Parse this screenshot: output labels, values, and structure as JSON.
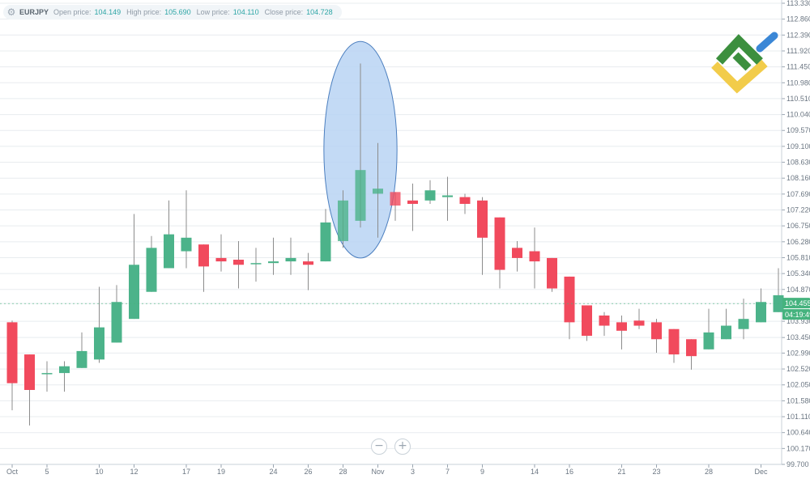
{
  "header": {
    "symbol": "EURJPY",
    "open_label": "Open price:",
    "open_value": "104.149",
    "high_label": "High price:",
    "high_value": "105.690",
    "low_label": "Low price:",
    "low_value": "104.110",
    "close_label": "Close price:",
    "close_value": "104.728"
  },
  "zoom": {
    "out": "−",
    "in": "+"
  },
  "price_badge": "104.455",
  "time_badge": "04:19:49",
  "colors": {
    "up": "#4cb38a",
    "down": "#f14a5d",
    "wick": "#8c8c8c",
    "grid": "#e8ecef",
    "axis_text": "#6b7682",
    "highlight_fill": "#b8d4f3",
    "highlight_stroke": "#4c7fbf",
    "badge": "#45b37e"
  },
  "chart_data": {
    "type": "candlestick",
    "ylim": [
      99.7,
      113.33
    ],
    "y_ticks": [
      "113.330",
      "112.860",
      "112.390",
      "111.920",
      "111.450",
      "110.980",
      "110.510",
      "110.040",
      "109.570",
      "109.100",
      "108.630",
      "108.160",
      "107.690",
      "107.220",
      "106.750",
      "106.280",
      "105.810",
      "105.340",
      "104.870",
      "104.455",
      "103.930",
      "103.450",
      "102.990",
      "102.520",
      "102.050",
      "101.580",
      "101.110",
      "100.640",
      "100.170",
      "99.700"
    ],
    "x_ticks": [
      "Oct",
      "5",
      "10",
      "12",
      "17",
      "19",
      "24",
      "26",
      "28",
      "Nov",
      "3",
      "7",
      "9",
      "14",
      "16",
      "21",
      "23",
      "28",
      "Dec"
    ],
    "candles": [
      {
        "o": 103.9,
        "h": 103.95,
        "l": 101.3,
        "c": 102.1
      },
      {
        "o": 102.95,
        "h": 102.95,
        "l": 100.85,
        "c": 101.9
      },
      {
        "o": 102.4,
        "h": 102.75,
        "l": 101.85,
        "c": 102.4
      },
      {
        "o": 102.4,
        "h": 102.75,
        "l": 101.85,
        "c": 102.6
      },
      {
        "o": 102.55,
        "h": 103.6,
        "l": 102.55,
        "c": 103.05
      },
      {
        "o": 102.8,
        "h": 104.95,
        "l": 102.7,
        "c": 103.75
      },
      {
        "o": 103.3,
        "h": 105.0,
        "l": 103.3,
        "c": 104.5
      },
      {
        "o": 104.0,
        "h": 107.1,
        "l": 104.0,
        "c": 105.6
      },
      {
        "o": 104.8,
        "h": 106.45,
        "l": 104.8,
        "c": 106.1
      },
      {
        "o": 105.5,
        "h": 107.5,
        "l": 105.5,
        "c": 106.5
      },
      {
        "o": 106.0,
        "h": 107.8,
        "l": 105.5,
        "c": 106.4
      },
      {
        "o": 106.2,
        "h": 106.2,
        "l": 104.8,
        "c": 105.55
      },
      {
        "o": 105.8,
        "h": 106.5,
        "l": 105.4,
        "c": 105.7
      },
      {
        "o": 105.75,
        "h": 106.3,
        "l": 104.9,
        "c": 105.6
      },
      {
        "o": 105.65,
        "h": 106.1,
        "l": 105.1,
        "c": 105.65
      },
      {
        "o": 105.65,
        "h": 106.4,
        "l": 105.3,
        "c": 105.7
      },
      {
        "o": 105.7,
        "h": 106.4,
        "l": 105.3,
        "c": 105.8
      },
      {
        "o": 105.7,
        "h": 105.95,
        "l": 104.85,
        "c": 105.6
      },
      {
        "o": 105.7,
        "h": 107.25,
        "l": 105.7,
        "c": 106.85
      },
      {
        "o": 106.3,
        "h": 107.8,
        "l": 106.1,
        "c": 107.5
      },
      {
        "o": 106.9,
        "h": 111.55,
        "l": 106.7,
        "c": 108.4
      },
      {
        "o": 107.7,
        "h": 109.2,
        "l": 106.4,
        "c": 107.85
      },
      {
        "o": 107.75,
        "h": 107.75,
        "l": 106.9,
        "c": 107.35
      },
      {
        "o": 107.5,
        "h": 108.0,
        "l": 106.6,
        "c": 107.4
      },
      {
        "o": 107.5,
        "h": 108.1,
        "l": 107.4,
        "c": 107.8
      },
      {
        "o": 107.6,
        "h": 108.2,
        "l": 106.9,
        "c": 107.65
      },
      {
        "o": 107.6,
        "h": 107.7,
        "l": 107.1,
        "c": 107.4
      },
      {
        "o": 107.5,
        "h": 107.6,
        "l": 105.3,
        "c": 106.4
      },
      {
        "o": 107.0,
        "h": 107.0,
        "l": 104.9,
        "c": 105.45
      },
      {
        "o": 106.1,
        "h": 106.3,
        "l": 105.4,
        "c": 105.8
      },
      {
        "o": 106.0,
        "h": 106.7,
        "l": 104.9,
        "c": 105.7
      },
      {
        "o": 105.8,
        "h": 105.8,
        "l": 104.8,
        "c": 104.9
      },
      {
        "o": 105.25,
        "h": 105.25,
        "l": 103.4,
        "c": 103.9
      },
      {
        "o": 104.4,
        "h": 104.4,
        "l": 103.35,
        "c": 103.5
      },
      {
        "o": 104.1,
        "h": 104.2,
        "l": 103.5,
        "c": 103.8
      },
      {
        "o": 103.9,
        "h": 104.1,
        "l": 103.1,
        "c": 103.65
      },
      {
        "o": 103.95,
        "h": 104.3,
        "l": 103.7,
        "c": 103.8
      },
      {
        "o": 103.9,
        "h": 104.0,
        "l": 103.0,
        "c": 103.4
      },
      {
        "o": 103.7,
        "h": 103.7,
        "l": 102.7,
        "c": 102.95
      },
      {
        "o": 103.4,
        "h": 103.4,
        "l": 102.5,
        "c": 102.9
      },
      {
        "o": 103.1,
        "h": 104.3,
        "l": 103.1,
        "c": 103.6
      },
      {
        "o": 103.4,
        "h": 104.3,
        "l": 103.4,
        "c": 103.8
      },
      {
        "o": 103.7,
        "h": 104.6,
        "l": 103.4,
        "c": 104.0
      },
      {
        "o": 103.9,
        "h": 104.9,
        "l": 103.9,
        "c": 104.5
      },
      {
        "o": 104.2,
        "h": 105.5,
        "l": 104.2,
        "c": 104.7
      }
    ],
    "highlight": {
      "x_index": 20,
      "y_center": 109.0,
      "x_radius_candles": 2.1,
      "y_radius": 3.2
    }
  }
}
